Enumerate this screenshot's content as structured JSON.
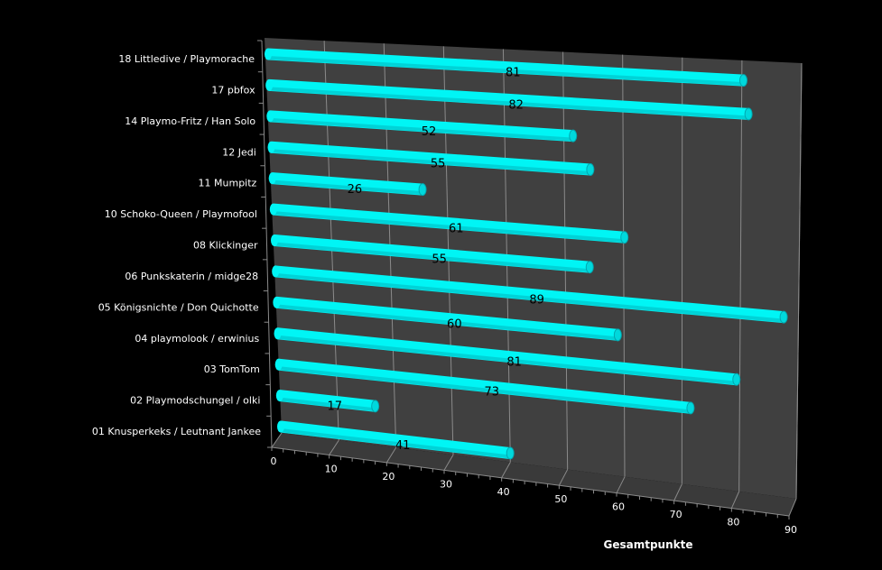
{
  "chart_data": {
    "type": "bar",
    "orientation": "horizontal",
    "style": "3d-cylinder",
    "categories": [
      "18 Littledive / Playmorache",
      "17 pbfox",
      "14 Playmo-Fritz / Han Solo",
      "12 Jedi",
      "11 Mumpitz",
      "10 Schoko-Queen / Playmofool",
      "08 Klickinger",
      "06 Punkskaterin / midge28",
      "05 Königsnichte / Don Quichotte",
      "04 playmolook / erwinius",
      "03 TomTom",
      "02 Playmodschungel / olki",
      "01 Knusperkeks / Leutnant Jankee"
    ],
    "values": [
      81,
      82,
      52,
      55,
      26,
      61,
      55,
      89,
      60,
      81,
      73,
      17,
      41
    ],
    "value_labels": [
      "81",
      "82",
      "52",
      "55",
      "26",
      "61",
      "55",
      "89",
      "60",
      "81",
      "73",
      "17",
      "41"
    ],
    "xlabel": "Gesamtpunkte",
    "ylabel": "",
    "title": "",
    "xlim": [
      0,
      90
    ],
    "xticks": [
      "0",
      "10",
      "20",
      "30",
      "40",
      "50",
      "60",
      "70",
      "80",
      "90"
    ],
    "grid": true,
    "legend": "none",
    "colors": {
      "bar": "#00f5f5",
      "bar_shade": "#00b8c0",
      "wall": "#404040",
      "grid": "#8a8a8a",
      "background": "#000000"
    }
  }
}
